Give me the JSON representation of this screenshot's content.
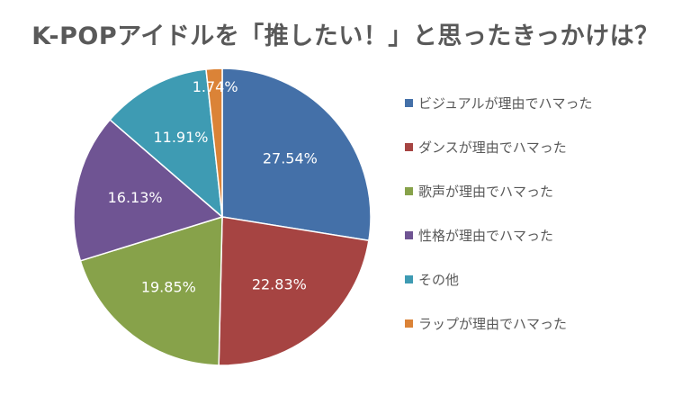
{
  "chart_data": {
    "type": "pie",
    "title": "K-POPアイドルを「推したい！」と思ったきっかけは？",
    "unit": "%",
    "slices": [
      {
        "label": "ビジュアルが理由でハマった",
        "value": 27.54,
        "display": "27.54%",
        "color": "#4470A8"
      },
      {
        "label": "ダンスが理由でハマった",
        "value": 22.83,
        "display": "22.83%",
        "color": "#A64442"
      },
      {
        "label": "歌声が理由でハマった",
        "value": 19.85,
        "display": "19.85%",
        "color": "#87A24A"
      },
      {
        "label": "性格が理由でハマった",
        "value": 16.13,
        "display": "16.13%",
        "color": "#6F5493"
      },
      {
        "label": "その他",
        "value": 11.91,
        "display": "11.91%",
        "color": "#3E9BB3"
      },
      {
        "label": "ラップが理由でハマった",
        "value": 1.74,
        "display": "1.74%",
        "color": "#DB8337"
      }
    ],
    "legend_position": "right"
  }
}
